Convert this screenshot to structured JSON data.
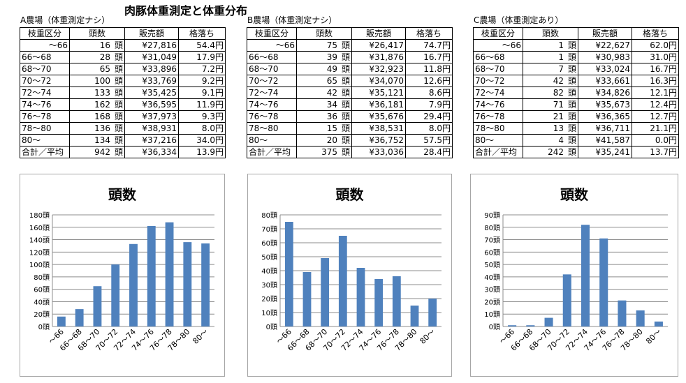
{
  "title": "肉豚体重測定と体重分布",
  "columns": [
    "枝重区分",
    "頭数",
    "販売額",
    "格落ち"
  ],
  "head_unit": "頭",
  "farms": [
    {
      "label": "A農場（体重測定ナシ）",
      "rows": [
        {
          "cat": "～66",
          "count": "16",
          "sales": "¥27,816",
          "drop": "54.4円"
        },
        {
          "cat": "66～68",
          "count": "28",
          "sales": "¥31,049",
          "drop": "17.9円"
        },
        {
          "cat": "68～70",
          "count": "65",
          "sales": "¥33,896",
          "drop": "7.2円"
        },
        {
          "cat": "70～72",
          "count": "100",
          "sales": "¥33,769",
          "drop": "9.2円"
        },
        {
          "cat": "72～74",
          "count": "133",
          "sales": "¥35,425",
          "drop": "9.1円"
        },
        {
          "cat": "74～76",
          "count": "162",
          "sales": "¥36,595",
          "drop": "11.9円"
        },
        {
          "cat": "76～78",
          "count": "168",
          "sales": "¥37,973",
          "drop": "9.3円"
        },
        {
          "cat": "78～80",
          "count": "136",
          "sales": "¥38,931",
          "drop": "8.0円"
        },
        {
          "cat": "80～",
          "count": "134",
          "sales": "¥37,216",
          "drop": "34.0円"
        },
        {
          "cat": "合計／平均",
          "count": "942",
          "sales": "¥36,334",
          "drop": "13.9円"
        }
      ]
    },
    {
      "label": "B農場（体重測定ナシ）",
      "rows": [
        {
          "cat": "～66",
          "count": "75",
          "sales": "¥26,417",
          "drop": "74.7円"
        },
        {
          "cat": "66～68",
          "count": "39",
          "sales": "¥31,876",
          "drop": "16.7円"
        },
        {
          "cat": "68～70",
          "count": "49",
          "sales": "¥32,923",
          "drop": "11.8円"
        },
        {
          "cat": "70～72",
          "count": "65",
          "sales": "¥34,070",
          "drop": "12.6円"
        },
        {
          "cat": "72～74",
          "count": "42",
          "sales": "¥35,121",
          "drop": "8.6円"
        },
        {
          "cat": "74～76",
          "count": "34",
          "sales": "¥36,181",
          "drop": "7.9円"
        },
        {
          "cat": "76～78",
          "count": "36",
          "sales": "¥35,676",
          "drop": "29.4円"
        },
        {
          "cat": "78～80",
          "count": "15",
          "sales": "¥38,531",
          "drop": "8.0円"
        },
        {
          "cat": "80～",
          "count": "20",
          "sales": "¥36,752",
          "drop": "57.5円"
        },
        {
          "cat": "合計／平均",
          "count": "375",
          "sales": "¥33,036",
          "drop": "28.4円"
        }
      ]
    },
    {
      "label": "C農場（体重測定あり）",
      "rows": [
        {
          "cat": "～66",
          "count": "1",
          "sales": "¥22,627",
          "drop": "62.0円"
        },
        {
          "cat": "66～68",
          "count": "1",
          "sales": "¥30,983",
          "drop": "31.0円"
        },
        {
          "cat": "68～70",
          "count": "7",
          "sales": "¥33,024",
          "drop": "16.7円"
        },
        {
          "cat": "70～72",
          "count": "42",
          "sales": "¥33,661",
          "drop": "16.3円"
        },
        {
          "cat": "72～74",
          "count": "82",
          "sales": "¥34,826",
          "drop": "12.1円"
        },
        {
          "cat": "74～76",
          "count": "71",
          "sales": "¥35,673",
          "drop": "12.4円"
        },
        {
          "cat": "76～78",
          "count": "21",
          "sales": "¥36,365",
          "drop": "12.7円"
        },
        {
          "cat": "78～80",
          "count": "13",
          "sales": "¥36,711",
          "drop": "21.1円"
        },
        {
          "cat": "80～",
          "count": "4",
          "sales": "¥41,587",
          "drop": "0.0円"
        },
        {
          "cat": "合計／平均",
          "count": "242",
          "sales": "¥35,241",
          "drop": "13.7円"
        }
      ]
    }
  ],
  "chart_data": [
    {
      "type": "bar",
      "title": "頭数",
      "categories": [
        "～66",
        "66～68",
        "68～70",
        "70～72",
        "72～74",
        "74～76",
        "76～78",
        "78～80",
        "80～"
      ],
      "values": [
        16,
        28,
        65,
        100,
        133,
        162,
        168,
        136,
        134
      ],
      "ylim": [
        0,
        180
      ],
      "ytick_step": 20,
      "ytick_suffix": "頭",
      "grid": true,
      "bar_color": "#4f81bd"
    },
    {
      "type": "bar",
      "title": "頭数",
      "categories": [
        "～66",
        "66～68",
        "68～70",
        "70～72",
        "72～74",
        "74～76",
        "76～78",
        "78～80",
        "80～"
      ],
      "values": [
        75,
        39,
        49,
        65,
        42,
        34,
        36,
        15,
        20
      ],
      "ylim": [
        0,
        80
      ],
      "ytick_step": 10,
      "ytick_suffix": "頭",
      "grid": true,
      "bar_color": "#4f81bd"
    },
    {
      "type": "bar",
      "title": "頭数",
      "categories": [
        "～66",
        "66～68",
        "68～70",
        "70～72",
        "72～74",
        "74～76",
        "76～78",
        "78～80",
        "80～"
      ],
      "values": [
        1,
        1,
        7,
        42,
        82,
        71,
        21,
        13,
        4
      ],
      "ylim": [
        0,
        90
      ],
      "ytick_step": 10,
      "ytick_suffix": "頭",
      "grid": true,
      "bar_color": "#4f81bd"
    }
  ]
}
